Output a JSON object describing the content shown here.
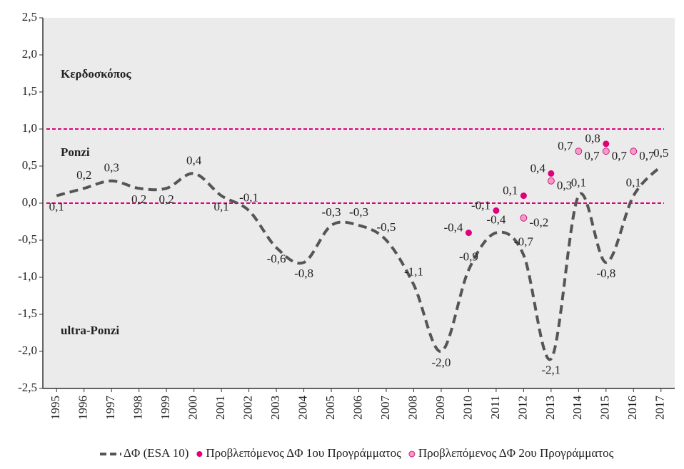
{
  "chart_data": {
    "type": "line",
    "categories": [
      "1995",
      "1996",
      "1997",
      "1998",
      "1999",
      "2000",
      "2001",
      "2002",
      "2003",
      "2004",
      "2005",
      "2006",
      "2007",
      "2008",
      "2009",
      "2010",
      "2011",
      "2012",
      "2013",
      "2014",
      "2015",
      "2016",
      "2017"
    ],
    "series": [
      {
        "name": "ΔΦ (ESA 10)",
        "color": "#555555",
        "style": "dashed",
        "values": [
          0.1,
          0.2,
          0.3,
          0.2,
          0.2,
          0.4,
          0.1,
          -0.1,
          -0.6,
          -0.8,
          -0.3,
          -0.3,
          -0.5,
          -1.1,
          -2.0,
          -0.9,
          -0.4,
          -0.7,
          -2.1,
          0.1,
          -0.8,
          0.1,
          0.5
        ],
        "value_labels": [
          "0,1",
          "0,2",
          "0,3",
          "0,2",
          "0,2",
          "0,4",
          "0,1",
          "-0,1",
          "-0,6",
          "-0,8",
          "-0,3",
          "-0,3",
          "-0,5",
          "-1,1",
          "-2,0",
          "-0,9",
          "-0,4",
          "-0,7",
          "-2,1",
          "0,1",
          "-0,8",
          "0,1",
          "0,5"
        ]
      },
      {
        "name": "Προβλεπόμενος ΔΦ 1ου Προγράμματος",
        "color": "#e0007a",
        "style": "dots",
        "values": [
          null,
          null,
          null,
          null,
          null,
          null,
          null,
          null,
          null,
          null,
          null,
          null,
          null,
          null,
          null,
          -0.4,
          -0.1,
          0.1,
          0.4,
          0.7,
          0.8,
          null,
          null
        ],
        "value_labels": [
          null,
          null,
          null,
          null,
          null,
          null,
          null,
          null,
          null,
          null,
          null,
          null,
          null,
          null,
          null,
          "-0,4",
          "-0,1",
          "0,1",
          "0,4",
          "0,7",
          "0,8",
          null,
          null
        ]
      },
      {
        "name": "Προβλεπόμενος ΔΦ 2ου Προγράμματος",
        "color": "#f49ac6",
        "style": "dots",
        "values": [
          null,
          null,
          null,
          null,
          null,
          null,
          null,
          null,
          null,
          null,
          null,
          null,
          null,
          null,
          null,
          null,
          null,
          -0.2,
          0.3,
          0.7,
          0.7,
          0.7,
          null
        ],
        "value_labels": [
          null,
          null,
          null,
          null,
          null,
          null,
          null,
          null,
          null,
          null,
          null,
          null,
          null,
          null,
          null,
          null,
          null,
          "-0,2",
          "0,3",
          "0,7",
          "0,7",
          "0,7",
          null
        ]
      }
    ],
    "ylim": [
      -2.5,
      2.5
    ],
    "yticks": [
      {
        "value": -2.5,
        "label": "-2,5"
      },
      {
        "value": -2,
        "label": "-2,0"
      },
      {
        "value": -1.5,
        "label": "-1,5"
      },
      {
        "value": -1,
        "label": "-1,0"
      },
      {
        "value": -0.5,
        "label": "-0,5"
      },
      {
        "value": 0,
        "label": "0,0"
      },
      {
        "value": 0.5,
        "label": "0,5"
      },
      {
        "value": 1,
        "label": "1,0"
      },
      {
        "value": 1.5,
        "label": "1,5"
      },
      {
        "value": 2,
        "label": "2,0"
      },
      {
        "value": 2.5,
        "label": "2,5"
      }
    ],
    "reference_lines": [
      1,
      0
    ],
    "reference_color": "#e0007a",
    "annotations": [
      "Κερδοσκόπος",
      "Ponzi",
      "ultra-Ponzi"
    ],
    "legend": "bottom"
  }
}
